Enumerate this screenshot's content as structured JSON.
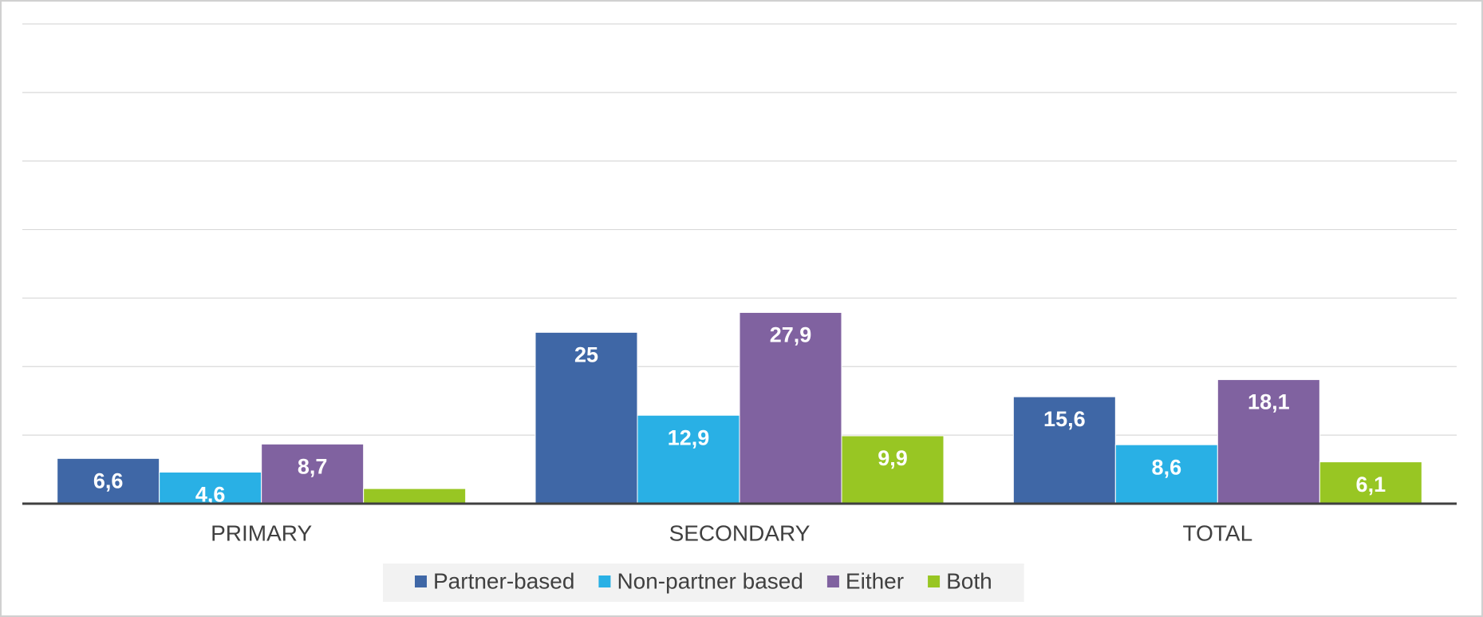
{
  "chart_data": {
    "type": "bar",
    "categories": [
      "PRIMARY",
      "SECONDARY",
      "TOTAL"
    ],
    "series": [
      {
        "name": "Partner-based",
        "color": "#3f67a6",
        "values": [
          6.6,
          25,
          15.6
        ],
        "value_labels": [
          "6,6",
          "25",
          "15,6"
        ]
      },
      {
        "name": "Non-partner based",
        "color": "#29b0e5",
        "values": [
          4.6,
          12.9,
          8.6
        ],
        "value_labels": [
          "4,6",
          "12,9",
          "8,6"
        ]
      },
      {
        "name": "Either",
        "color": "#8062a0",
        "values": [
          8.7,
          27.9,
          18.1
        ],
        "value_labels": [
          "8,7",
          "27,9",
          "18,1"
        ]
      },
      {
        "name": "Both",
        "color": "#98c623",
        "values": [
          2.2,
          9.9,
          6.1
        ],
        "value_labels": [
          "2,2",
          "9,9",
          "6,1"
        ]
      }
    ],
    "ylim": [
      0,
      70
    ],
    "yticks": [
      0,
      10,
      20,
      30,
      40,
      50,
      60,
      70
    ],
    "grid": true,
    "legend": "bottom"
  }
}
